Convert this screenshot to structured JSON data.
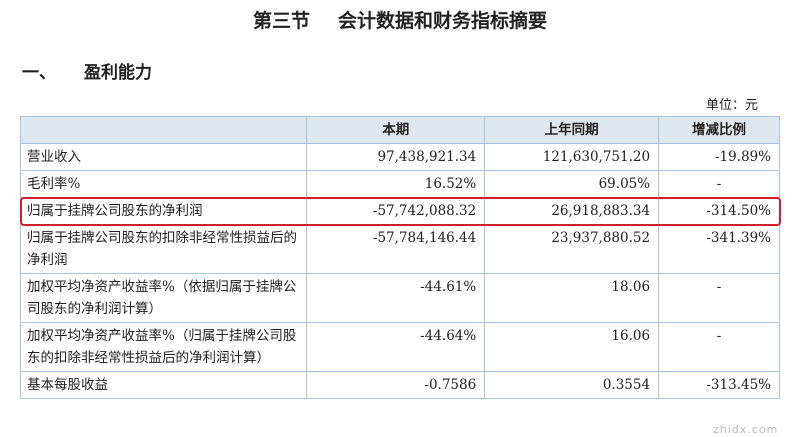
{
  "title": {
    "section": "第三节",
    "name": "会计数据和财务指标摘要"
  },
  "heading": {
    "number": "一、",
    "text": "盈利能力"
  },
  "unit": "单位：元",
  "table": {
    "headers": [
      "",
      "本期",
      "上年同期",
      "增减比例"
    ],
    "rows": [
      [
        "营业收入",
        "97,438,921.34",
        "121,630,751.20",
        "-19.89%"
      ],
      [
        "毛利率%",
        "16.52%",
        "69.05%",
        "-"
      ],
      [
        "归属于挂牌公司股东的净利润",
        "-57,742,088.32",
        "26,918,883.34",
        "-314.50%"
      ],
      [
        "归属于挂牌公司股东的扣除非经常性损益后的净利润",
        "-57,784,146.44",
        "23,937,880.52",
        "-341.39%"
      ],
      [
        "加权平均净资产收益率%（依据归属于挂牌公司股东的净利润计算）",
        "-44.61%",
        "18.06",
        "-"
      ],
      [
        "加权平均净资产收益率%（归属于挂牌公司股东的扣除非经常性损益后的净利润计算）",
        "-44.64%",
        "16.06",
        "-"
      ],
      [
        "基本每股收益",
        "-0.7586",
        "0.3554",
        "-313.45%"
      ]
    ]
  },
  "highlight_color": "#d0202a",
  "watermark": "zhidx.com"
}
